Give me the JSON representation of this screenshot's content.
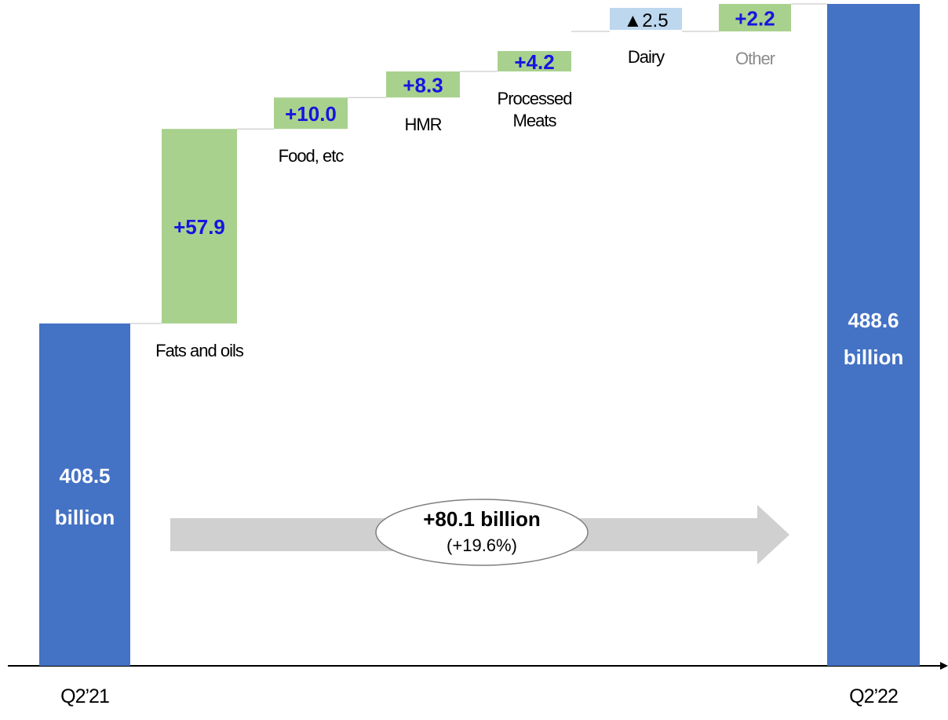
{
  "chart_data": {
    "type": "waterfall",
    "unit": "billion",
    "start": {
      "category": "Q2’21",
      "value": 408.5,
      "label_line1": "408.5",
      "label_line2": "billion"
    },
    "end": {
      "category": "Q2’22",
      "value": 488.6,
      "label_line1": "488.6",
      "label_line2": "billion"
    },
    "steps": [
      {
        "name": "Fats and oils",
        "label_lines": [
          "Fats and oils"
        ],
        "delta": 57.9,
        "value_label": "+57.9",
        "kind": "increase"
      },
      {
        "name": "Food, etc",
        "label_lines": [
          "Food, etc"
        ],
        "delta": 10.0,
        "value_label": "+10.0",
        "kind": "increase"
      },
      {
        "name": "HMR",
        "label_lines": [
          "HMR"
        ],
        "delta": 8.3,
        "value_label": "+8.3",
        "kind": "increase"
      },
      {
        "name": "Processed Meats",
        "label_lines": [
          "Processed",
          "Meats"
        ],
        "delta": 4.2,
        "value_label": "+4.2",
        "kind": "increase"
      },
      {
        "name": "Dairy",
        "label_lines": [
          "Dairy"
        ],
        "delta": -2.5,
        "value_label": "▲2.5",
        "kind": "decrease"
      },
      {
        "name": "Other",
        "label_lines": [
          "Other"
        ],
        "delta": 2.2,
        "value_label": "+2.2",
        "kind": "increase"
      }
    ],
    "summary": {
      "line1": "+80.1 billion",
      "line2": "(+19.6%)"
    }
  },
  "colors": {
    "total_bar": "#4472c4",
    "increase_bar": "#a9d18e",
    "decrease_bar": "#bdd7ee",
    "increase_text": "#1515e0",
    "decrease_text": "#000000",
    "total_text": "#ffffff",
    "category_text": "#000000",
    "muted_category_text": "#8c8c8c",
    "connector": "#bfbfbf",
    "arrow": "#d0d0d0",
    "axis": "#000000"
  }
}
